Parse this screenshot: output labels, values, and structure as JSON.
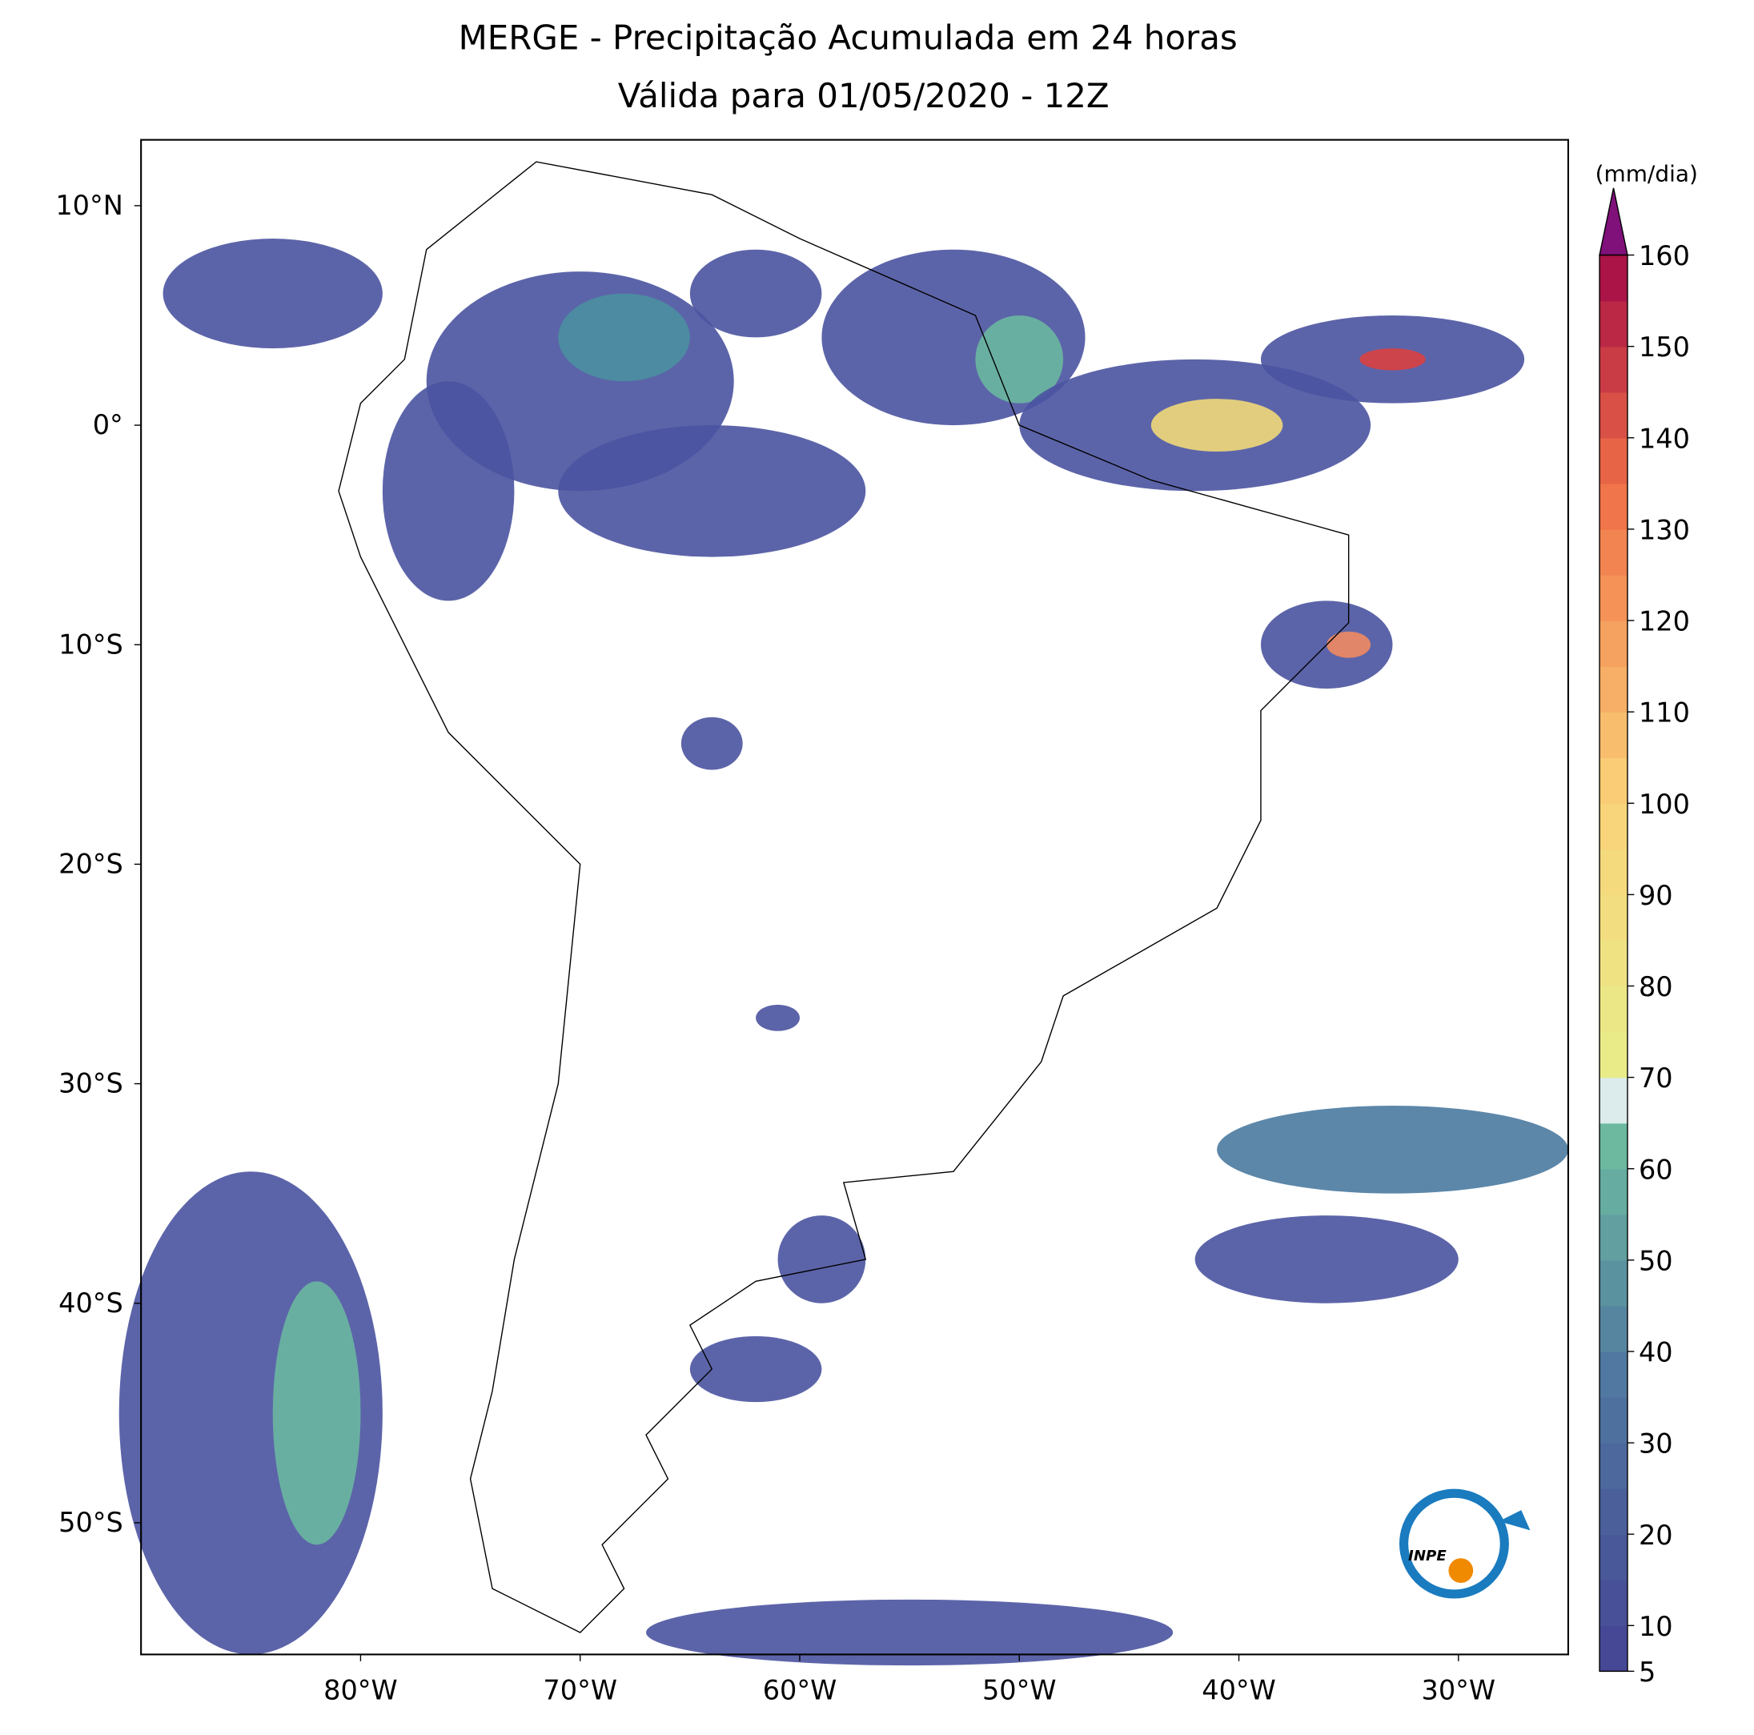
{
  "chart_data": {
    "type": "map",
    "title": "MERGE - Precipitação Acumulada em 24 horas",
    "subtitle": "Válida para 01/05/2020 - 12Z",
    "xlim": [
      -90,
      -25
    ],
    "ylim": [
      -56,
      13
    ],
    "xticks": [
      {
        "value": -80,
        "label": "80°W"
      },
      {
        "value": -70,
        "label": "70°W"
      },
      {
        "value": -60,
        "label": "60°W"
      },
      {
        "value": -50,
        "label": "50°W"
      },
      {
        "value": -40,
        "label": "40°W"
      },
      {
        "value": -30,
        "label": "30°W"
      }
    ],
    "yticks": [
      {
        "value": 10,
        "label": "10°N"
      },
      {
        "value": 0,
        "label": "0°"
      },
      {
        "value": -10,
        "label": "10°S"
      },
      {
        "value": -20,
        "label": "20°S"
      },
      {
        "value": -30,
        "label": "30°S"
      },
      {
        "value": -40,
        "label": "40°S"
      },
      {
        "value": -50,
        "label": "50°S"
      }
    ],
    "colorbar": {
      "label": "(mm/dia)",
      "lim": [
        5,
        160
      ],
      "ticks": [
        5,
        10,
        20,
        30,
        40,
        50,
        60,
        70,
        80,
        90,
        100,
        110,
        120,
        130,
        140,
        150,
        160
      ]
    },
    "logo_text": "INPE"
  }
}
